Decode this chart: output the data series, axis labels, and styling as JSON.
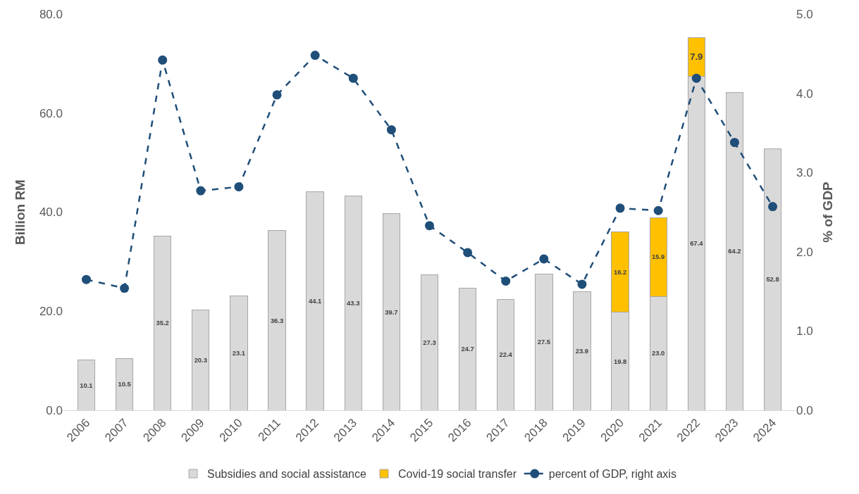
{
  "chart_data": {
    "type": "bar",
    "stacked": true,
    "ylabel": "Billion RM",
    "y2label": "% of GDP",
    "categories": [
      "2006",
      "2007",
      "2008",
      "2009",
      "2010",
      "2011",
      "2012",
      "2013",
      "2014",
      "2015",
      "2016",
      "2017",
      "2018",
      "2019",
      "2020",
      "2021",
      "2022",
      "2023",
      "2024"
    ],
    "series": [
      {
        "name": "Subsidies and social assistance",
        "color": "#d9d9d9",
        "values": [
          10.1,
          10.5,
          35.2,
          20.3,
          23.1,
          36.3,
          44.1,
          43.3,
          39.7,
          27.3,
          24.7,
          22.4,
          27.5,
          23.9,
          19.8,
          23.0,
          67.4,
          64.2,
          52.8
        ],
        "value_labels": [
          "10.1",
          "10.5",
          "35.2",
          "20.3",
          "23.1",
          "36.3",
          "44.1",
          "43.3",
          "39.7",
          "27.3",
          "24.7",
          "22.4",
          "27.5",
          "23.9",
          "19.8",
          "23.0",
          "67.4",
          "64.2",
          "52.8"
        ]
      },
      {
        "name": "Covid-19 social transfer",
        "color": "#ffc000",
        "values": [
          null,
          null,
          null,
          null,
          null,
          null,
          null,
          null,
          null,
          null,
          null,
          null,
          null,
          null,
          16.2,
          15.9,
          7.9,
          null,
          null
        ],
        "value_labels": [
          null,
          null,
          null,
          null,
          null,
          null,
          null,
          null,
          null,
          null,
          null,
          null,
          null,
          null,
          "16.2",
          "15.9",
          "7.9",
          null,
          null
        ]
      },
      {
        "name": "percent of GDP, right axis",
        "type": "line",
        "axis": "y2",
        "color": "#1f4e79",
        "marker": "circle",
        "line_style": "dashed",
        "values": [
          1.65,
          1.54,
          4.42,
          2.77,
          2.82,
          3.98,
          4.48,
          4.19,
          3.54,
          2.33,
          1.99,
          1.63,
          1.91,
          1.59,
          2.55,
          2.52,
          4.19,
          3.38,
          2.57
        ]
      }
    ],
    "ylim": [
      0,
      80
    ],
    "yticks": [
      {
        "value": 0,
        "label": "0.0"
      },
      {
        "value": 20,
        "label": "20.0"
      },
      {
        "value": 40,
        "label": "40.0"
      },
      {
        "value": 60,
        "label": "60.0"
      },
      {
        "value": 80,
        "label": "80.0"
      }
    ],
    "y2lim": [
      0,
      5
    ],
    "y2ticks": [
      {
        "value": 0,
        "label": "0.0"
      },
      {
        "value": 1,
        "label": "1.0"
      },
      {
        "value": 2,
        "label": "2.0"
      },
      {
        "value": 3,
        "label": "3.0"
      },
      {
        "value": 4,
        "label": "4.0"
      },
      {
        "value": 5,
        "label": "5.0"
      }
    ],
    "legend": "bottom"
  }
}
